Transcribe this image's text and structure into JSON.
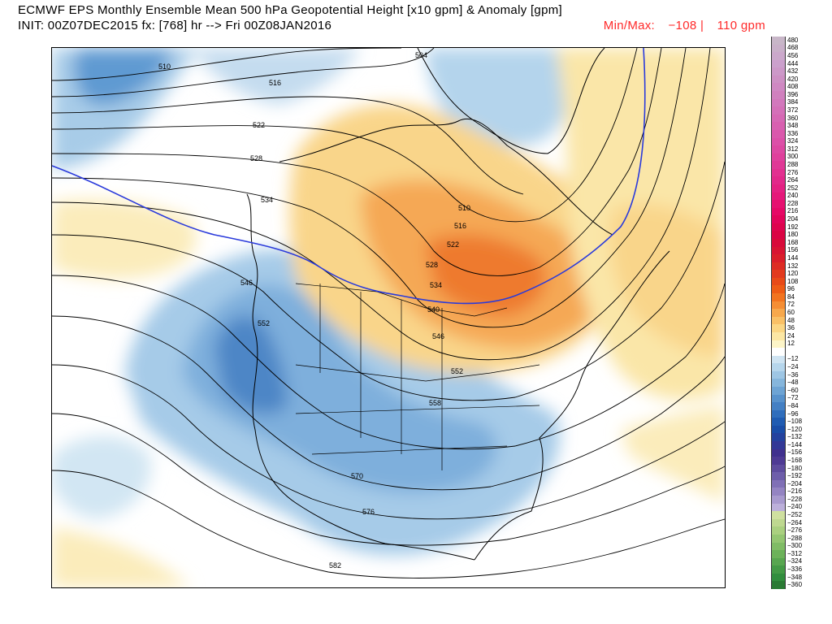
{
  "header": {
    "line1": "ECMWF EPS Monthly Ensemble Mean 500 hPa Geopotential Height [x10 gpm] & Anomaly [gpm]",
    "line2": "INIT: 00Z07DEC2015 fx: [768] hr --> Fri 00Z08JAN2016",
    "minmax_label": "Min/Max:",
    "min_value": "−108 |",
    "max_value": "110 gpm"
  },
  "contours": {
    "labels": [
      "510",
      "504",
      "516",
      "522",
      "528",
      "534",
      "546",
      "552",
      "510",
      "516",
      "522",
      "528",
      "534",
      "540",
      "546",
      "552",
      "558",
      "570",
      "576",
      "582"
    ]
  },
  "colorbar": {
    "levels": [
      {
        "label": "480",
        "color": "#c8b6c8"
      },
      {
        "label": "468",
        "color": "#c9b0c9"
      },
      {
        "label": "456",
        "color": "#cba8cb"
      },
      {
        "label": "444",
        "color": "#cba0cc"
      },
      {
        "label": "432",
        "color": "#cc98c8"
      },
      {
        "label": "420",
        "color": "#cd90c4"
      },
      {
        "label": "408",
        "color": "#cf88c2"
      },
      {
        "label": "396",
        "color": "#d080be"
      },
      {
        "label": "384",
        "color": "#d278bc"
      },
      {
        "label": "372",
        "color": "#d470b8"
      },
      {
        "label": "360",
        "color": "#d668b4"
      },
      {
        "label": "348",
        "color": "#d860b0"
      },
      {
        "label": "336",
        "color": "#da58ac"
      },
      {
        "label": "324",
        "color": "#dc50a8"
      },
      {
        "label": "312",
        "color": "#dd48a2"
      },
      {
        "label": "300",
        "color": "#df409c"
      },
      {
        "label": "288",
        "color": "#e03896"
      },
      {
        "label": "276",
        "color": "#e23090"
      },
      {
        "label": "264",
        "color": "#e2288a"
      },
      {
        "label": "252",
        "color": "#e42082"
      },
      {
        "label": "240",
        "color": "#e5187a"
      },
      {
        "label": "228",
        "color": "#e61070"
      },
      {
        "label": "216",
        "color": "#e60866"
      },
      {
        "label": "204",
        "color": "#e2045a"
      },
      {
        "label": "192",
        "color": "#de044e"
      },
      {
        "label": "180",
        "color": "#da0444"
      },
      {
        "label": "168",
        "color": "#d80a3a"
      },
      {
        "label": "156",
        "color": "#d81432"
      },
      {
        "label": "144",
        "color": "#da1e2a"
      },
      {
        "label": "132",
        "color": "#dd2c24"
      },
      {
        "label": "120",
        "color": "#e23a1e"
      },
      {
        "label": "108",
        "color": "#e84a18"
      },
      {
        "label": "96",
        "color": "#ee5c16"
      },
      {
        "label": "84",
        "color": "#f27420"
      },
      {
        "label": "72",
        "color": "#f58e34"
      },
      {
        "label": "60",
        "color": "#f7a84c"
      },
      {
        "label": "48",
        "color": "#f9c066"
      },
      {
        "label": "36",
        "color": "#fbd684"
      },
      {
        "label": "24",
        "color": "#fce7a4"
      },
      {
        "label": "12",
        "color": "#fdf5c8"
      },
      {
        "label": "",
        "color": "#ffffff"
      },
      {
        "label": "−12",
        "color": "#cfe4f2"
      },
      {
        "label": "−24",
        "color": "#b6d6ec"
      },
      {
        "label": "−36",
        "color": "#9ec6e4"
      },
      {
        "label": "−48",
        "color": "#86b6dc"
      },
      {
        "label": "−60",
        "color": "#6ea4d4"
      },
      {
        "label": "−72",
        "color": "#5892cc"
      },
      {
        "label": "−84",
        "color": "#4480c4"
      },
      {
        "label": "−96",
        "color": "#306ebc"
      },
      {
        "label": "−108",
        "color": "#205cb2"
      },
      {
        "label": "−120",
        "color": "#1a4ea8"
      },
      {
        "label": "−132",
        "color": "#24429e"
      },
      {
        "label": "−144",
        "color": "#323896"
      },
      {
        "label": "−156",
        "color": "#40308e"
      },
      {
        "label": "−168",
        "color": "#4e3a94"
      },
      {
        "label": "−180",
        "color": "#5e4c9e"
      },
      {
        "label": "−192",
        "color": "#6e5eaa"
      },
      {
        "label": "−204",
        "color": "#8070b6"
      },
      {
        "label": "−216",
        "color": "#9484c2"
      },
      {
        "label": "−228",
        "color": "#a89ace"
      },
      {
        "label": "−240",
        "color": "#bcb0da"
      },
      {
        "label": "−252",
        "color": "#cfe0a0"
      },
      {
        "label": "−264",
        "color": "#bed890"
      },
      {
        "label": "−276",
        "color": "#aad080"
      },
      {
        "label": "−288",
        "color": "#94c672"
      },
      {
        "label": "−300",
        "color": "#80bc66"
      },
      {
        "label": "−312",
        "color": "#6cb25a"
      },
      {
        "label": "−324",
        "color": "#58a650"
      },
      {
        "label": "−336",
        "color": "#449a46"
      },
      {
        "label": "−348",
        "color": "#328e3e"
      },
      {
        "label": "−360",
        "color": "#2a7a34"
      }
    ]
  }
}
